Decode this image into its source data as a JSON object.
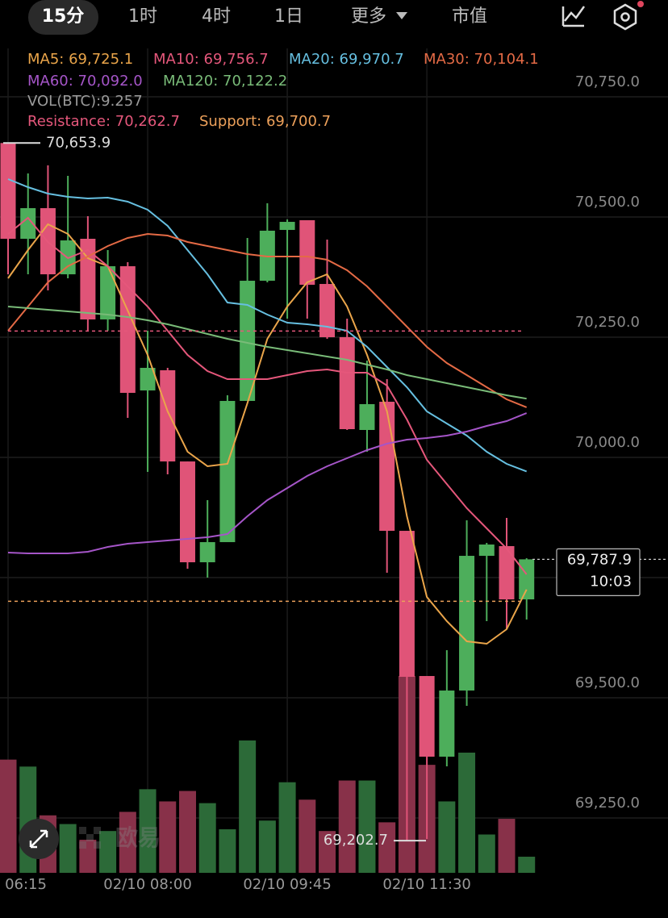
{
  "tabs": {
    "items": [
      "15分",
      "1时",
      "4时",
      "1日",
      "更多",
      "市值"
    ],
    "selected": 0
  },
  "watermark": "欧易",
  "chart_data": {
    "type": "candlestick",
    "categories": [
      "06:15",
      null,
      null,
      null,
      null,
      null,
      null,
      "02/10 08:00",
      null,
      null,
      null,
      null,
      null,
      null,
      "02/10 09:45",
      null,
      null,
      null,
      null,
      null,
      null,
      "02/10 11:30",
      null,
      null,
      null,
      null,
      null
    ],
    "open": [
      70653.9,
      70454.7,
      70518.4,
      70380.8,
      70454.7,
      70286.9,
      70397.6,
      70139.2,
      70181.2,
      69991.5,
      69781.8,
      69823.7,
      70117.4,
      70367.4,
      70473.1,
      70493.3,
      70360.7,
      70250.0,
      70057.0,
      70115.7,
      69847.2,
      69545.2,
      69377.4,
      69515.0,
      69795.2,
      69815.4,
      69704.6
    ],
    "high": [
      70653.9,
      70590.6,
      70607.4,
      70585.6,
      70501.7,
      70431.2,
      70406.0,
      70263.4,
      70186.2,
      69991.5,
      69911.0,
      70129.1,
      70456.3,
      70528.5,
      70494.9,
      70493.3,
      70453.0,
      70288.5,
      70201.3,
      70162.7,
      69847.2,
      69545.2,
      69599.0,
      69869.0,
      69822.0,
      69874.1,
      69790.2
    ],
    "low": [
      70380.8,
      70380.8,
      70347.3,
      70372.4,
      70263.4,
      70263.4,
      70082.2,
      69969.7,
      69964.7,
      69768.4,
      69749.9,
      69823.7,
      70117.4,
      70364.1,
      70288.5,
      70288.5,
      70246.6,
      70057.0,
      70011.7,
      69760.0,
      69202.7,
      69206.2,
      69357.3,
      69483.1,
      69659.3,
      69642.5,
      69662.7
    ],
    "close": [
      70454.7,
      70518.4,
      70380.8,
      70451.3,
      70286.9,
      70397.6,
      70134.2,
      70186.2,
      69991.5,
      69781.8,
      69823.7,
      70117.4,
      70367.4,
      70471.5,
      70489.9,
      70359.0,
      70250.0,
      70058.7,
      70110.7,
      69847.2,
      69543.5,
      69377.4,
      69515.0,
      69795.2,
      69818.7,
      69704.6,
      69787.9
    ],
    "up_color": "#4dae5b",
    "down_color": "#e05478",
    "volume": [
      65,
      61,
      33,
      28,
      19,
      24,
      35,
      48,
      41,
      47,
      40,
      25,
      76,
      30,
      52,
      42,
      24,
      53,
      53,
      29,
      113,
      62,
      41,
      69,
      22,
      31,
      9.257
    ],
    "volume_up_color": "#2c6a38",
    "volume_down_color": "#883149",
    "volume_label": "VOL(BTC):9.257",
    "series": [
      {
        "label": "MA5: 69,725.1",
        "color": "#eaa54a",
        "values": [
          70372.4,
          70431.2,
          70484.9,
          70464.7,
          70414.4,
          70397.6,
          70305.3,
          70213.0,
          70095.6,
          70011.7,
          69981.5,
          69986.5,
          70112.4,
          70246.6,
          70313.7,
          70364.1,
          70380.8,
          70313.7,
          70213.0,
          70095.6,
          69877.4,
          69709.6,
          69659.3,
          69617.3,
          69612.3,
          69642.5,
          69725.1
        ]
      },
      {
        "label": "MA10: 69,756.7",
        "color": "#e5577b",
        "values": [
          70464.7,
          70498.3,
          70448.0,
          70414.4,
          70431.2,
          70397.6,
          70355.7,
          70313.7,
          70263.4,
          70213.0,
          70179.5,
          70162.7,
          70162.7,
          70162.7,
          70171.1,
          70179.5,
          70182.8,
          70176.1,
          70176.1,
          70149.3,
          70078.8,
          69994.9,
          69944.6,
          69894.2,
          69852.3,
          69810.3,
          69756.7
        ]
      },
      {
        "label": "MA20: 69,970.7",
        "color": "#66bfe0",
        "values": [
          70578.8,
          70562.1,
          70548.6,
          70541.9,
          70538.6,
          70540.2,
          70531.9,
          70515.1,
          70481.5,
          70431.2,
          70380.8,
          70322.1,
          70317.1,
          70297.0,
          70280.2,
          70276.8,
          70271.8,
          70263.4,
          70229.8,
          70187.9,
          70145.9,
          70095.6,
          70070.4,
          70045.2,
          70011.7,
          69986.5,
          69970.7
        ]
      },
      {
        "label": "MA30: 70,104.1",
        "color": "#e46a45",
        "values": [
          70263.4,
          70313.7,
          70364.1,
          70397.6,
          70417.8,
          70439.6,
          70456.3,
          70464.7,
          70461.4,
          70448.0,
          70439.6,
          70431.2,
          70422.8,
          70417.8,
          70417.8,
          70417.8,
          70411.0,
          70389.2,
          70355.7,
          70313.7,
          70271.8,
          70229.8,
          70196.3,
          70171.1,
          70145.9,
          70120.7,
          70104.1
        ]
      },
      {
        "label": "MA60: 70,092.0",
        "color": "#a555c8",
        "values": [
          69801.9,
          69800.3,
          69800.3,
          69800.3,
          69803.6,
          69813.7,
          69820.4,
          69823.7,
          69827.1,
          69830.5,
          69833.8,
          69840.5,
          69877.4,
          69911.0,
          69936.2,
          69961.3,
          69981.5,
          69998.3,
          70015.0,
          70028.5,
          70036.8,
          70040.2,
          70045.2,
          70053.6,
          70065.4,
          70075.4,
          70092.0
        ]
      },
      {
        "label": "MA120: 70,122.2",
        "color": "#79bb78",
        "values": [
          70313.7,
          70310.4,
          70307.0,
          70303.7,
          70300.3,
          70297.0,
          70291.9,
          70285.2,
          70276.8,
          70266.7,
          70256.7,
          70246.6,
          70238.2,
          70229.8,
          70223.1,
          70216.4,
          70209.7,
          70203.0,
          70192.9,
          70182.8,
          70171.1,
          70162.7,
          70154.3,
          70145.9,
          70137.5,
          70129.1,
          70122.2
        ]
      }
    ],
    "resistance": {
      "value": 70262.7,
      "label": "Resistance: 70,262.7",
      "color": "#e5577b"
    },
    "support": {
      "value": 69700.7,
      "label": "Support: 69,700.7",
      "color": "#eca05a"
    },
    "high_marker": {
      "value": 70653.9,
      "label": "70,653.9"
    },
    "low_marker": {
      "value": 69202.7,
      "label": "69,202.7"
    },
    "last_price": {
      "value": 69787.9,
      "label": "69,787.9",
      "countdown": "10:03"
    },
    "ylim": [
      69135.8,
      70850.7
    ],
    "yticks": [
      {
        "value": 70750,
        "label": "70,750.0"
      },
      {
        "value": 70500,
        "label": "70,500.0"
      },
      {
        "value": 70250,
        "label": "70,250.0"
      },
      {
        "value": 70000,
        "label": "70,000.0"
      },
      {
        "value": 69750,
        "label": "69,750.0"
      },
      {
        "value": 69500,
        "label": "69,500.0"
      },
      {
        "value": 69250,
        "label": "69,250.0"
      }
    ],
    "grid": true
  }
}
